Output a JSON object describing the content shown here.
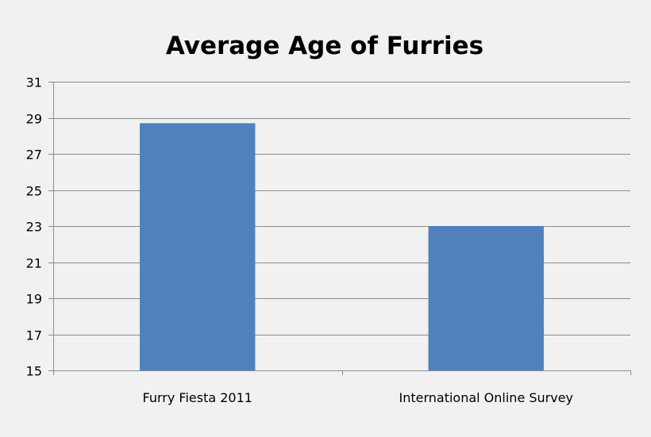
{
  "chart_data": {
    "type": "bar",
    "title": "Average Age of Furries",
    "xlabel": "",
    "ylabel": "",
    "categories": [
      "Furry Fiesta 2011",
      "International Online Survey"
    ],
    "values": [
      28.7,
      23.0
    ],
    "ylim": [
      15,
      31
    ],
    "yticks": [
      "15",
      "17",
      "19",
      "21",
      "23",
      "25",
      "27",
      "29",
      "31"
    ],
    "grid": true,
    "legend": "none",
    "bar_color": "#4f81bd",
    "grid_color": "#8c8c8c",
    "background_color": "#f1f1f1"
  }
}
